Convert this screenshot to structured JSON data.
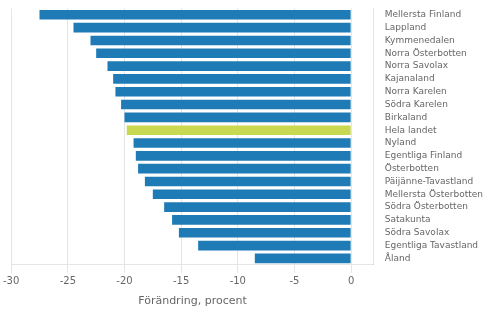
{
  "chart_data": {
    "type": "bar",
    "orientation": "horizontal",
    "categories": [
      "Mellersta Finland",
      "Lappland",
      "Kymmenedalen",
      "Norra Österbotten",
      "Norra Savolax",
      "Kajanaland",
      "Norra Karelen",
      "Södra Karelen",
      "Birkaland",
      "Hela landet",
      "Nyland",
      "Egentliga Finland",
      "Österbotten",
      "Päijänne-Tavastland",
      "Mellersta Österbotten",
      "Södra Österbotten",
      "Satakunta",
      "Södra Savolax",
      "Egentliga Tavastland",
      "Åland"
    ],
    "values": [
      -27.5,
      -24.5,
      -23.0,
      -22.5,
      -21.5,
      -21.0,
      -20.8,
      -20.3,
      -20.0,
      -19.8,
      -19.2,
      -19.0,
      -18.8,
      -18.2,
      -17.5,
      -16.5,
      -15.8,
      -15.2,
      -13.5,
      -8.5
    ],
    "colors": [
      "#1f7bb5",
      "#1f7bb5",
      "#1f7bb5",
      "#1f7bb5",
      "#1f7bb5",
      "#1f7bb5",
      "#1f7bb5",
      "#1f7bb5",
      "#1f7bb5",
      "#c8d850",
      "#1f7bb5",
      "#1f7bb5",
      "#1f7bb5",
      "#1f7bb5",
      "#1f7bb5",
      "#1f7bb5",
      "#1f7bb5",
      "#1f7bb5",
      "#1f7bb5",
      "#1f7bb5"
    ],
    "xlabel": "Förändring, procent",
    "xlim": [
      -30,
      2
    ],
    "xticks": [
      -30,
      -25,
      -20,
      -15,
      -10,
      -5,
      0
    ],
    "grid": true
  }
}
